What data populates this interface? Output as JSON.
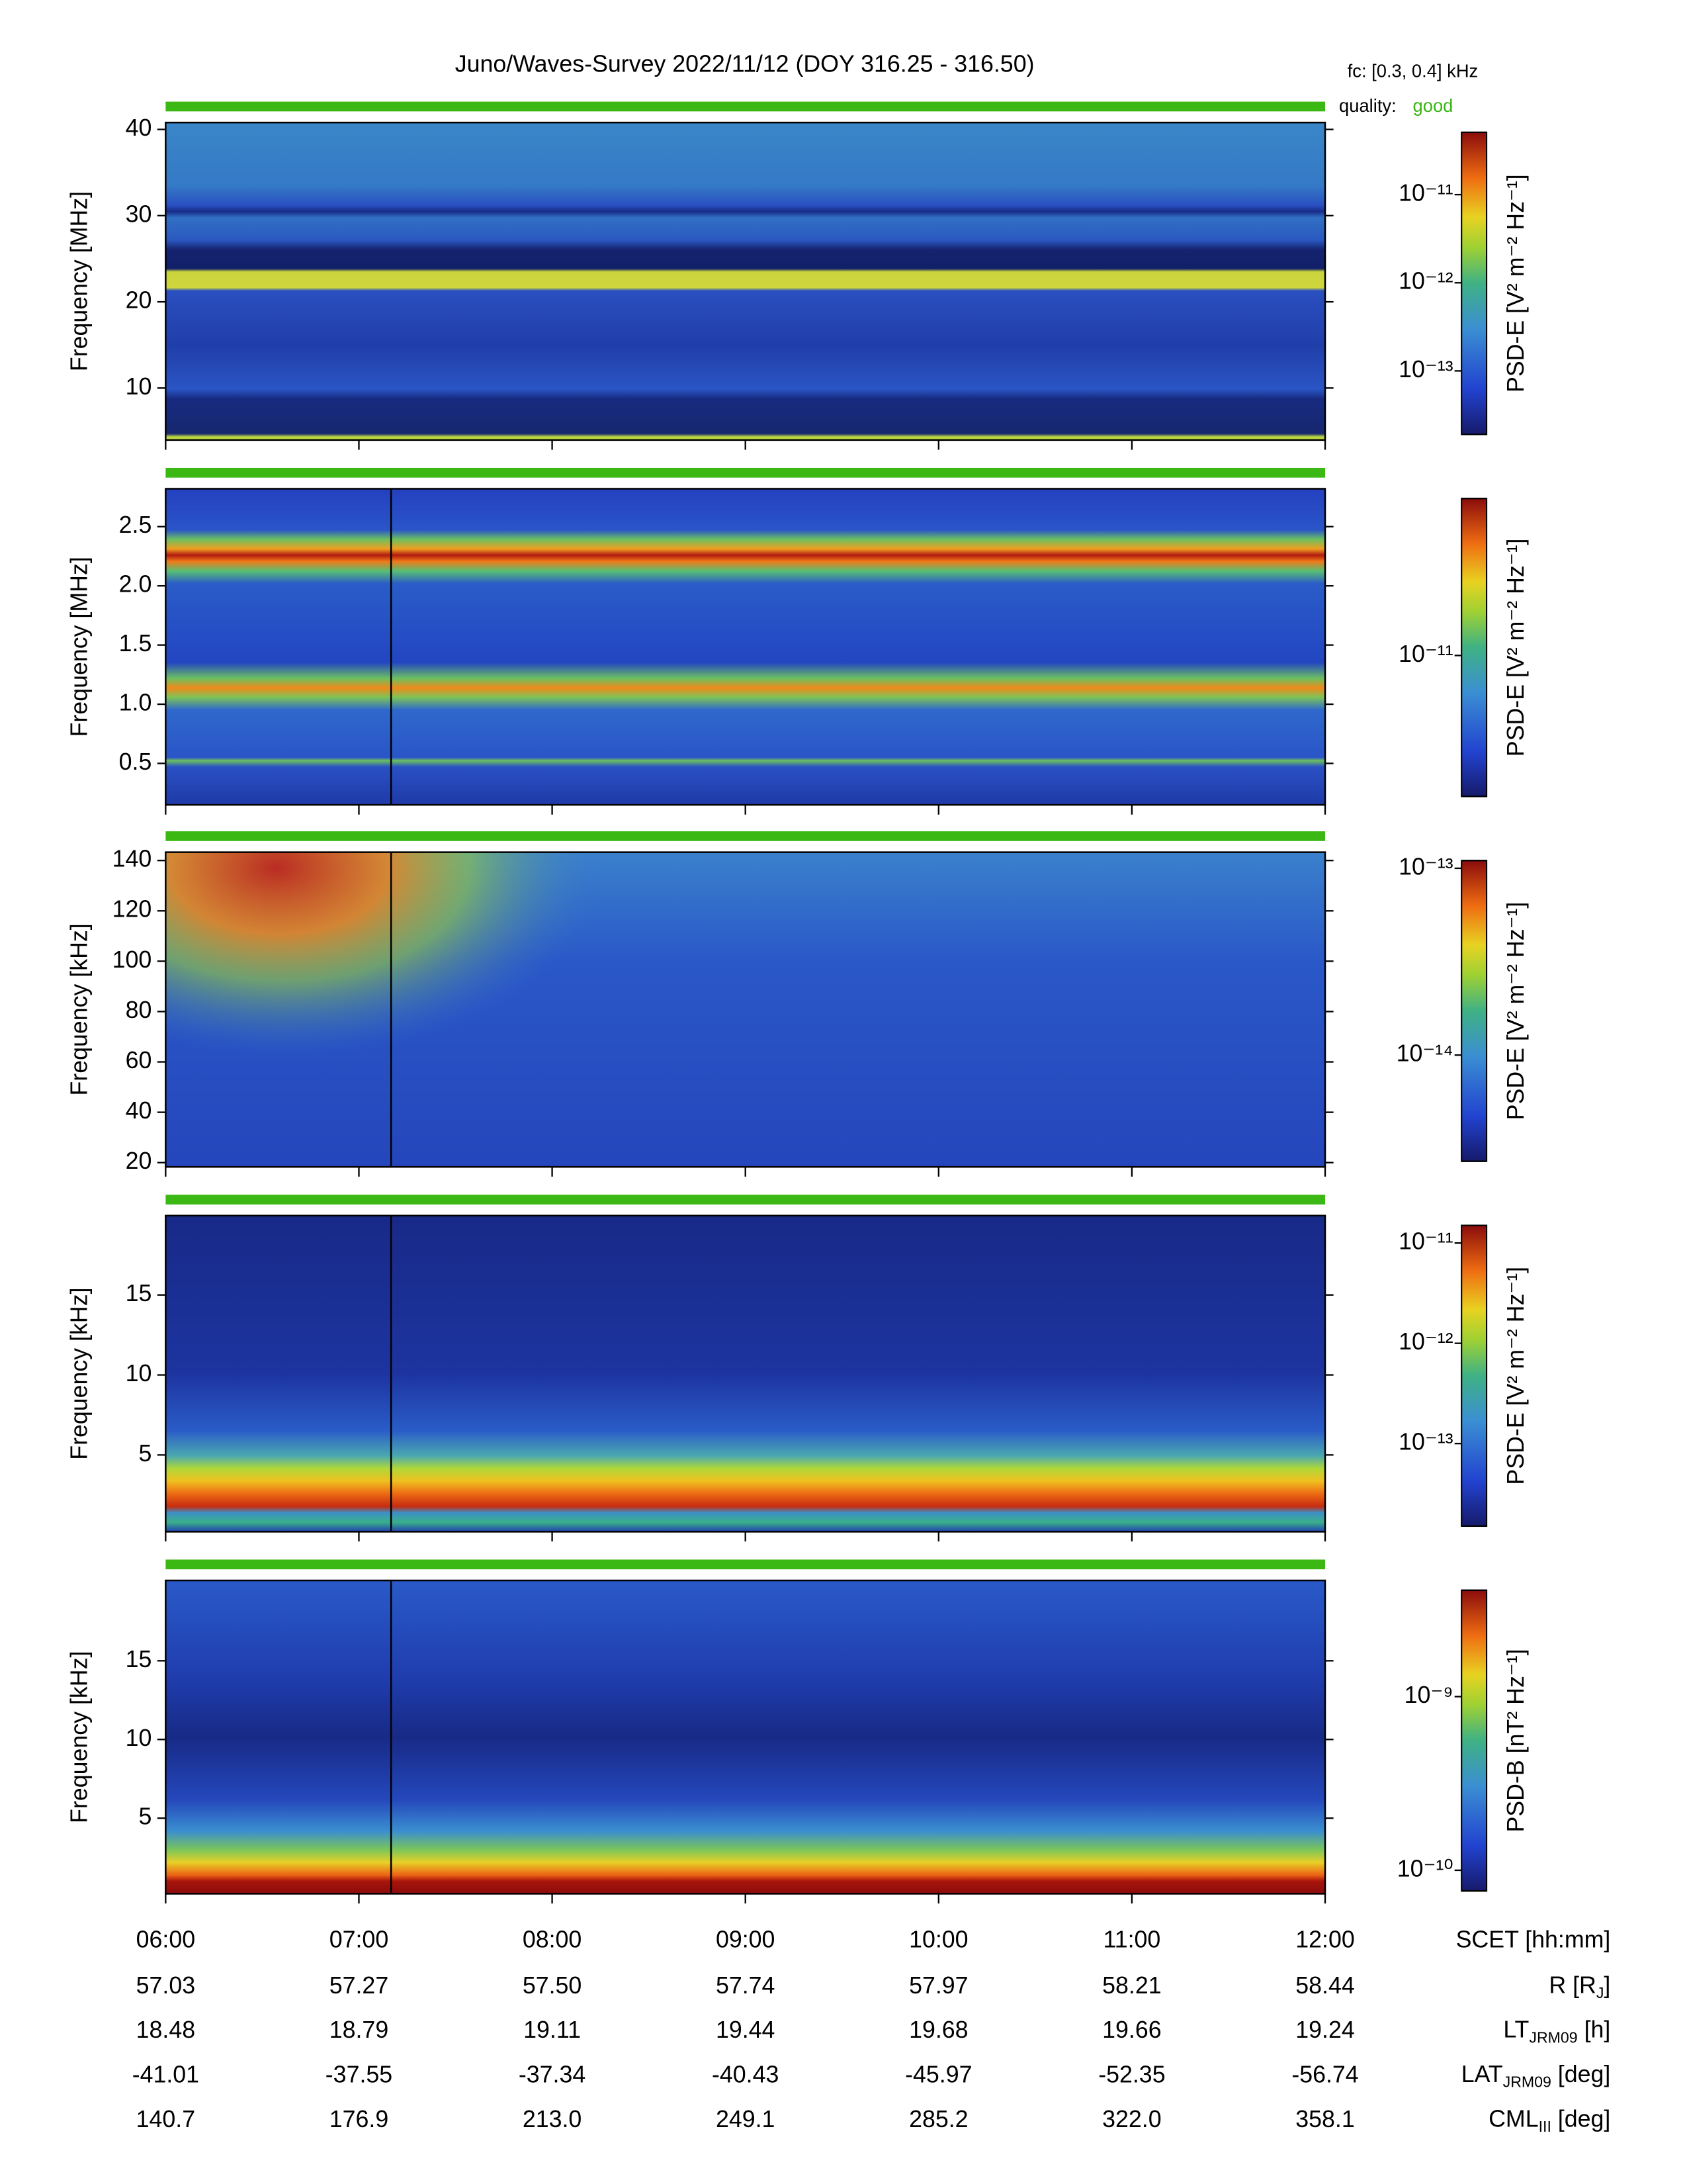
{
  "header": {
    "title": "Juno/Waves-Survey  2022/11/12 (DOY 316.25 - 316.50)",
    "fc_label": "fc: [0.3, 0.4] kHz",
    "quality_label": "quality:",
    "quality": "good"
  },
  "chart_data": [
    {
      "type": "spectrogram",
      "ylabel": "Frequency [MHz]",
      "ylim": [
        3.97,
        40.8
      ],
      "yticks": [
        10,
        20,
        30,
        40
      ],
      "colorbar_label": "PSD-E [V² m⁻² Hz⁻¹]",
      "clim": [
        1.9e-14,
        5.1e-11
      ],
      "clog": true,
      "cticks": [
        {
          "value": 1e-13,
          "label": "10⁻¹³"
        },
        {
          "value": 1e-12,
          "label": "10⁻¹²"
        },
        {
          "value": 1e-11,
          "label": "10⁻¹¹"
        }
      ]
    },
    {
      "type": "spectrogram",
      "ylabel": "Frequency [MHz]",
      "ylim": [
        0.15,
        2.82
      ],
      "yticks": [
        {
          "value": 0.5,
          "label": "0.5"
        },
        {
          "value": 1,
          "label": "1.0"
        },
        {
          "value": 1.5,
          "label": "1.5"
        },
        {
          "value": 2,
          "label": "2.0"
        },
        {
          "value": 2.5,
          "label": "2.5"
        }
      ],
      "colorbar_label": "PSD-E [V² m⁻² Hz⁻¹]",
      "clim": [
        2e-12,
        6e-11
      ],
      "clog": true,
      "cticks": [
        {
          "value": 1e-11,
          "label": "10⁻¹¹"
        }
      ],
      "cursor_x": 7.1667
    },
    {
      "type": "spectrogram",
      "ylabel": "Frequency [kHz]",
      "ylim": [
        18.3,
        143.3
      ],
      "yticks": [
        20,
        40,
        60,
        80,
        100,
        120,
        140
      ],
      "colorbar_label": "PSD-E [V² m⁻² Hz⁻¹]",
      "clim": [
        2.7e-15,
        1.1e-13
      ],
      "clog": true,
      "cticks": [
        {
          "value": 1e-14,
          "label": "10⁻¹⁴"
        },
        {
          "value": 1e-13,
          "label": "10⁻¹³"
        }
      ],
      "cursor_x": 7.1667
    },
    {
      "type": "spectrogram",
      "ylabel": "Frequency [kHz]",
      "ylim": [
        0.2,
        19.96
      ],
      "yticks": [
        5,
        10,
        15
      ],
      "colorbar_label": "PSD-E [V² m⁻² Hz⁻¹]",
      "clim": [
        1.5e-14,
        1.5e-11
      ],
      "clog": true,
      "cticks": [
        {
          "value": 1e-13,
          "label": "10⁻¹³"
        },
        {
          "value": 1e-12,
          "label": "10⁻¹²"
        },
        {
          "value": 1e-11,
          "label": "10⁻¹¹"
        }
      ],
      "cursor_x": 7.1667
    },
    {
      "type": "spectrogram",
      "ylabel": "Frequency [kHz]",
      "ylim": [
        0.2,
        20.1
      ],
      "yticks": [
        5,
        10,
        15
      ],
      "colorbar_label": "PSD-B [nT² Hz⁻¹]",
      "clim": [
        7.6e-11,
        4.1e-09
      ],
      "clog": true,
      "cticks": [
        {
          "value": 1e-10,
          "label": "10⁻¹⁰"
        },
        {
          "value": 1e-09,
          "label": "10⁻⁹"
        }
      ],
      "cursor_x": 7.1667,
      "xlim": [
        6,
        12
      ],
      "xlabel": "SCET [hh:mm]",
      "xticks": [
        {
          "value": 6,
          "label": "06:00"
        },
        {
          "value": 7,
          "label": "07:00"
        },
        {
          "value": 8,
          "label": "08:00"
        },
        {
          "value": 9,
          "label": "09:00"
        },
        {
          "value": 10,
          "label": "10:00"
        },
        {
          "value": 11,
          "label": "11:00"
        },
        {
          "value": 12,
          "label": "12:00"
        }
      ]
    }
  ],
  "ephemeris": {
    "rows": [
      {
        "base": "R [R",
        "sub": "J",
        "tail": "]",
        "values": [
          "57.03",
          "57.27",
          "57.50",
          "57.74",
          "57.97",
          "58.21",
          "58.44"
        ]
      },
      {
        "base": "LT",
        "sub": "JRM09",
        "tail": " [h]",
        "values": [
          "18.48",
          "18.79",
          "19.11",
          "19.44",
          "19.68",
          "19.66",
          "19.24"
        ]
      },
      {
        "base": "LAT",
        "sub": "JRM09",
        "tail": " [deg]",
        "values": [
          "-41.01",
          "-37.55",
          "-37.34",
          "-40.43",
          "-45.97",
          "-52.35",
          "-56.74"
        ]
      },
      {
        "base": "CML",
        "sub": "III",
        "tail": " [deg]",
        "values": [
          "140.7",
          "176.9",
          "213.0",
          "249.1",
          "285.2",
          "322.0",
          "358.1"
        ]
      }
    ]
  }
}
